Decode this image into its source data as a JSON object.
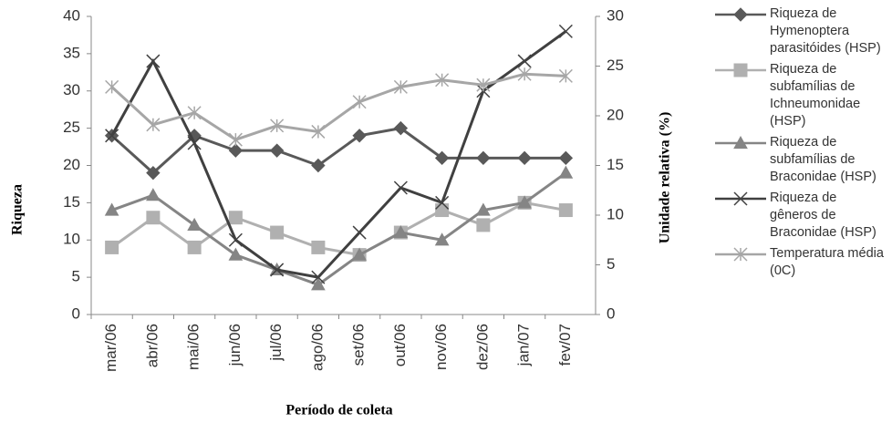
{
  "chart_data": {
    "type": "line",
    "x_label": "Período de coleta",
    "y_label": "Riqueza",
    "y2_label": "Unidade relativa (%)",
    "categories": [
      "mar/06",
      "abr/06",
      "mai/06",
      "jun/06",
      "jul/06",
      "ago/06",
      "set/06",
      "out/06",
      "nov/06",
      "dez/06",
      "jan/07",
      "fev/07"
    ],
    "ylim": [
      0,
      40
    ],
    "yticks": [
      0,
      5,
      10,
      15,
      20,
      25,
      30,
      35,
      40
    ],
    "y2lim": [
      0,
      30
    ],
    "y2ticks": [
      0,
      5,
      10,
      15,
      20,
      25,
      30
    ],
    "legend": "right",
    "series": [
      {
        "name": "Riqueza de Hymenoptera parasitóides (HSP)",
        "color": "#595959",
        "marker": "diamond",
        "values": [
          24,
          19,
          24,
          22,
          22,
          20,
          24,
          25,
          21,
          21,
          21,
          21
        ]
      },
      {
        "name": "Riqueza de subfamílias de Ichneumonidae (HSP)",
        "color": "#b0b0b0",
        "marker": "square",
        "values": [
          9,
          13,
          9,
          13,
          11,
          9,
          8,
          11,
          14,
          12,
          15,
          14
        ]
      },
      {
        "name": "Riqueza de subfamílias de Braconidae (HSP)",
        "color": "#858585",
        "marker": "triangle",
        "values": [
          14,
          16,
          12,
          8,
          6,
          4,
          8,
          11,
          10,
          14,
          15,
          19
        ]
      },
      {
        "name": "Riqueza de gêneros de Braconidae (HSP)",
        "color": "#404040",
        "marker": "x",
        "values": [
          24,
          34,
          23,
          10,
          6,
          5,
          11,
          17,
          15,
          30,
          34,
          38
        ]
      },
      {
        "name": "Temperatura média (0C)",
        "color": "#a6a6a6",
        "marker": "star",
        "axis": "y2",
        "values": [
          22.9,
          19.1,
          20.3,
          17.6,
          19,
          18.4,
          21.4,
          22.9,
          23.6,
          23.1,
          24.2,
          24
        ]
      }
    ]
  }
}
